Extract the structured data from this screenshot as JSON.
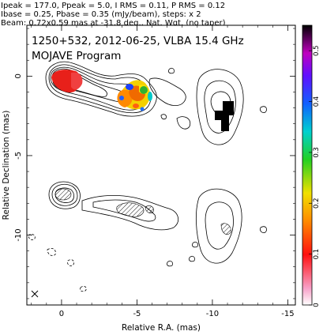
{
  "header_lines": [
    "Ipeak = 177.0, Ppeak = 5.0, I RMS = 0.11, P RMS = 0.12",
    "Ibase = 0.25, Pbase = 0.35 (mJy/beam), steps: x 2",
    "Beam: 0.72x0.59 mas at -31.8 deg., Nat. Wgt. (no taper)"
  ],
  "plot_title": "1250+532, 2012-06-25, VLBA 15.4 GHz",
  "plot_subtitle": "MOJAVE Program",
  "colors": {
    "contour": "#000000",
    "core": "#e8201a",
    "background": "#ffffff"
  },
  "chart_data": {
    "type": "heatmap",
    "title": "1250+532, 2012-06-25, VLBA 15.4 GHz",
    "subtitle": "MOJAVE Program",
    "xlabel": "Relative R.A. (mas)",
    "ylabel": "Relative Declination (mas)",
    "xlim": [
      2.3,
      -15.5
    ],
    "ylim": [
      -14.4,
      3.2
    ],
    "x_ticks": [
      0,
      -5,
      -10,
      -15
    ],
    "x_tick_labels": [
      "0",
      "-5",
      "-10",
      "-15"
    ],
    "y_ticks": [
      0,
      -5,
      -10
    ],
    "y_tick_labels": [
      "0",
      "-5",
      "-10"
    ],
    "colorbar": {
      "range": [
        0,
        0.55
      ],
      "ticks": [
        0,
        0.1,
        0.2,
        0.3,
        0.4,
        0.5
      ],
      "tick_labels": [
        "0",
        "0.1",
        "0.2",
        "0.3",
        "0.4",
        "0.5"
      ]
    },
    "panels": [
      {
        "name": "total intensity + fractional polarization",
        "dec_offset": 0
      },
      {
        "name": "total intensity + EVPA",
        "dec_offset": -7.6
      }
    ],
    "grid": false
  }
}
